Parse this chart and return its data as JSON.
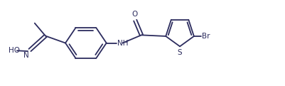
{
  "bg_color": "#ffffff",
  "line_color": "#2c2c5e",
  "lw": 1.3,
  "fs": 7.5,
  "figsize": [
    4.02,
    1.21
  ],
  "dpi": 100,
  "xlim": [
    0,
    10
  ],
  "ylim": [
    0,
    3
  ]
}
